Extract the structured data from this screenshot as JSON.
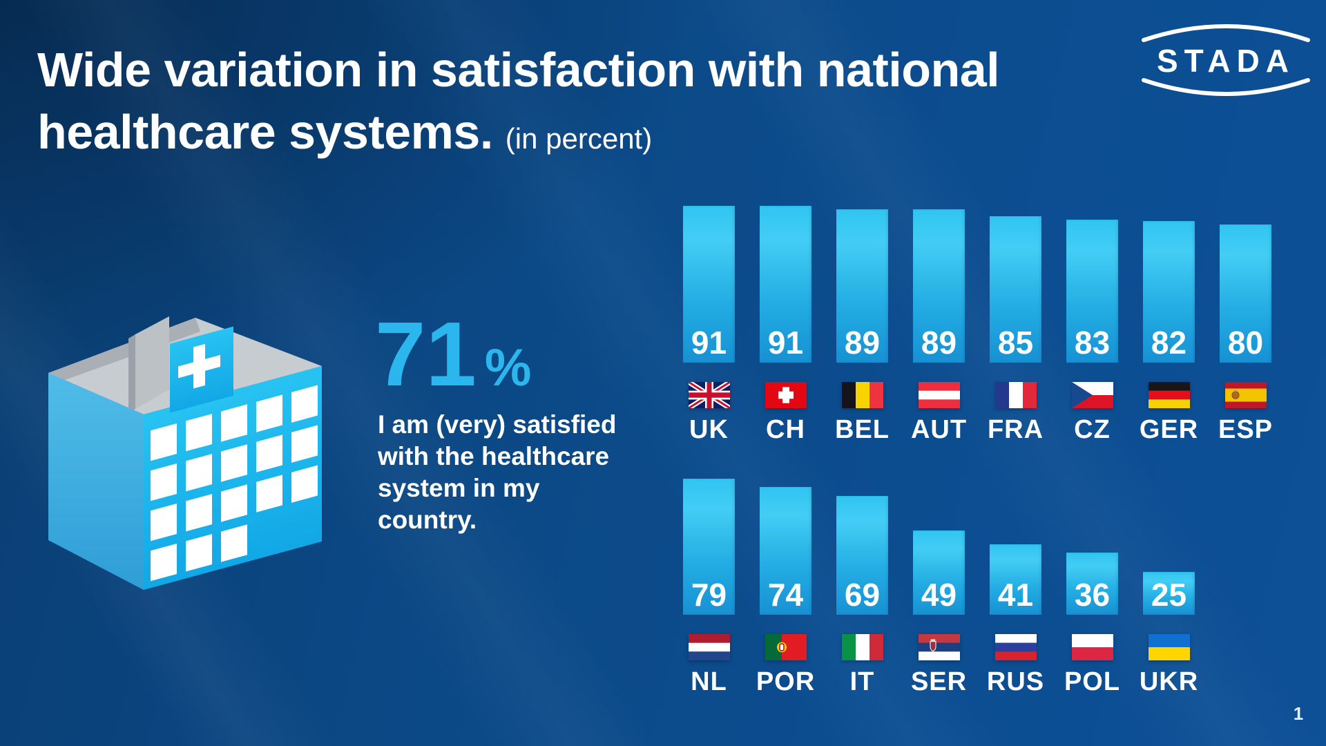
{
  "slide": {
    "title_line1": "Wide variation in satisfaction with national",
    "title_line2": "healthcare systems.",
    "title_suffix": "(in percent)",
    "logo_text": "STADA",
    "page_number": "1"
  },
  "stat": {
    "value": "71",
    "unit": "%",
    "caption_lines": [
      "I am (very) satisfied",
      "with the healthcare",
      "system in my",
      "country."
    ]
  },
  "icons": {
    "hospital": "hospital-3d-icon",
    "logo": "stada-lens-logo"
  },
  "colors": {
    "background_dark_blue": "#0b4783",
    "background_light_blue": "#0d5096",
    "bar_gradient_top": "#30c5f1",
    "bar_gradient_bottom": "#1791d3",
    "accent_cyan": "#2bb7ed",
    "text_white": "#ffffff"
  },
  "chart_data": {
    "type": "bar",
    "title": "Wide variation in satisfaction with national healthcare systems. (in percent)",
    "unit": "percent",
    "ylim": [
      0,
      100
    ],
    "grid": false,
    "legend": false,
    "value_labels": "inside bar bottom",
    "rows": [
      {
        "items": [
          {
            "label": "UK",
            "value": 91,
            "flag": "uk"
          },
          {
            "label": "CH",
            "value": 91,
            "flag": "ch"
          },
          {
            "label": "BEL",
            "value": 89,
            "flag": "bel"
          },
          {
            "label": "AUT",
            "value": 89,
            "flag": "aut"
          },
          {
            "label": "FRA",
            "value": 85,
            "flag": "fra"
          },
          {
            "label": "CZ",
            "value": 83,
            "flag": "cz"
          },
          {
            "label": "GER",
            "value": 82,
            "flag": "ger"
          },
          {
            "label": "ESP",
            "value": 80,
            "flag": "esp"
          }
        ]
      },
      {
        "items": [
          {
            "label": "NL",
            "value": 79,
            "flag": "nl"
          },
          {
            "label": "POR",
            "value": 74,
            "flag": "por"
          },
          {
            "label": "IT",
            "value": 69,
            "flag": "it"
          },
          {
            "label": "SER",
            "value": 49,
            "flag": "ser"
          },
          {
            "label": "RUS",
            "value": 41,
            "flag": "rus"
          },
          {
            "label": "POL",
            "value": 36,
            "flag": "pol"
          },
          {
            "label": "UKR",
            "value": 25,
            "flag": "ukr"
          }
        ]
      }
    ]
  }
}
